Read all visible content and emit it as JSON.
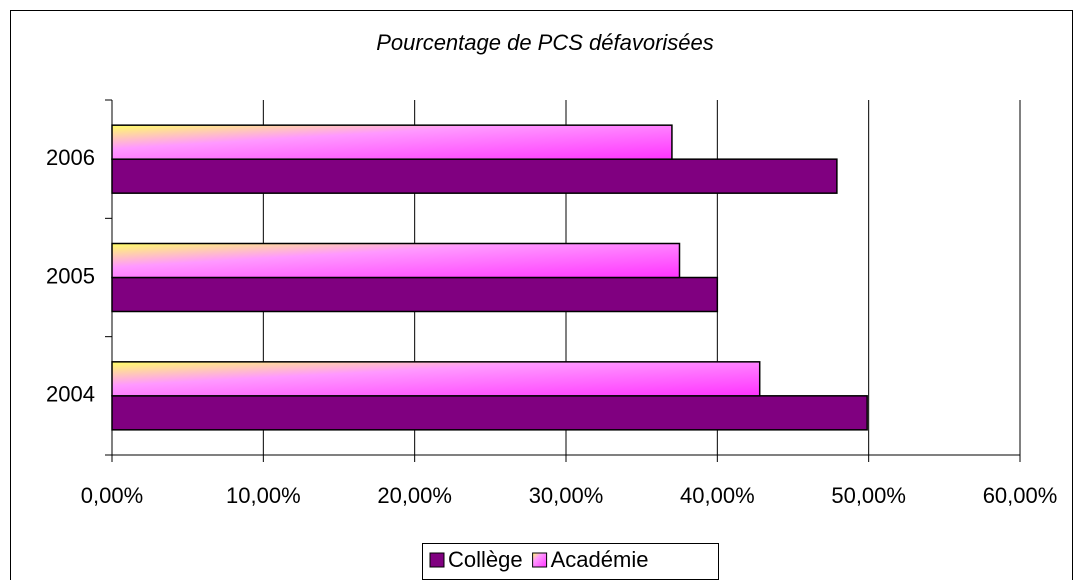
{
  "chart_data": {
    "type": "bar",
    "orientation": "horizontal",
    "title": "Pourcentage de PCS défavorisées",
    "categories": [
      "2004",
      "2005",
      "2006"
    ],
    "series": [
      {
        "name": "Collège",
        "color": "#800080",
        "values": [
          49.9,
          40.0,
          47.9
        ]
      },
      {
        "name": "Académie",
        "color": "#ff66ff",
        "values": [
          42.8,
          37.5,
          37.0
        ]
      }
    ],
    "xlim": [
      0,
      60
    ],
    "xticks": [
      {
        "value": 0,
        "label": "0,00%"
      },
      {
        "value": 10,
        "label": "10,00%"
      },
      {
        "value": 20,
        "label": "20,00%"
      },
      {
        "value": 30,
        "label": "30,00%"
      },
      {
        "value": 40,
        "label": "40,00%"
      },
      {
        "value": 50,
        "label": "50,00%"
      },
      {
        "value": 60,
        "label": "60,00%"
      }
    ],
    "grid": true,
    "legend": "bottom"
  }
}
